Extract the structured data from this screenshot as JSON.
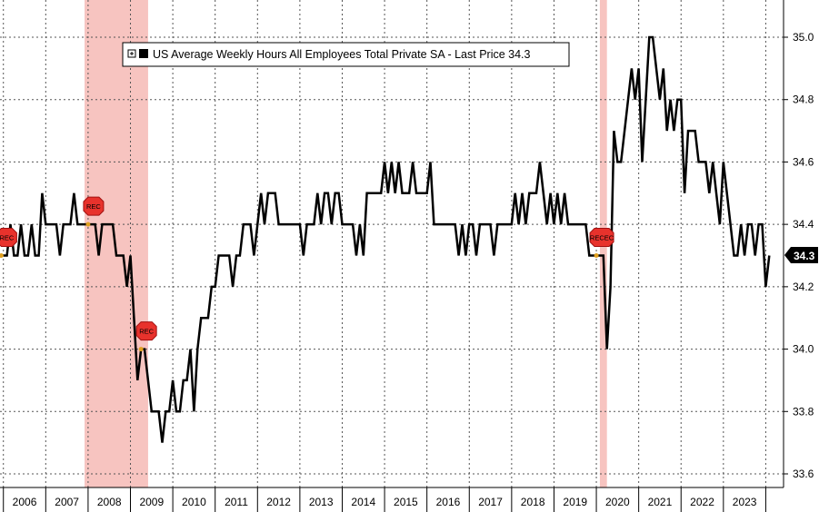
{
  "chart_data": {
    "type": "line",
    "title": "",
    "xlabel": "",
    "ylabel": "",
    "legend": {
      "label": "US Average Weekly Hours All Employees Total Private SA - Last Price",
      "last_value": "34.3",
      "position": "top-center"
    },
    "x_start": 2005.92,
    "x_end": 2024.42,
    "x_ticks": [
      "2006",
      "2007",
      "2008",
      "2009",
      "2010",
      "2011",
      "2012",
      "2013",
      "2014",
      "2015",
      "2016",
      "2017",
      "2018",
      "2019",
      "2020",
      "2021",
      "2022",
      "2023"
    ],
    "ylim": [
      33.6,
      35.1
    ],
    "y_ticks": [
      "33.6",
      "33.8",
      "34.0",
      "34.2",
      "34.4",
      "34.6",
      "34.8",
      "35.0"
    ],
    "grid": true,
    "last_price_label": "34.3",
    "recessions": [
      {
        "start": 2007.917,
        "end": 2009.417
      },
      {
        "start": 2020.083,
        "end": 2020.25
      }
    ],
    "rec_markers": [
      {
        "x": 2005.95,
        "label": "REC"
      },
      {
        "x": 2008.0,
        "label": "REC"
      },
      {
        "x": 2009.25,
        "label": "REC"
      },
      {
        "x": 2020.0,
        "label": "RECEC"
      }
    ],
    "series": [
      {
        "color": "#000000",
        "x_start": 2006.0,
        "step": 0.08333,
        "values": [
          34.3,
          34.3,
          34.4,
          34.3,
          34.3,
          34.4,
          34.3,
          34.3,
          34.4,
          34.3,
          34.3,
          34.5,
          34.4,
          34.4,
          34.4,
          34.4,
          34.3,
          34.4,
          34.4,
          34.4,
          34.5,
          34.4,
          34.4,
          34.4,
          34.4,
          34.4,
          34.4,
          34.3,
          34.4,
          34.4,
          34.4,
          34.4,
          34.3,
          34.3,
          34.3,
          34.2,
          34.3,
          34.1,
          33.9,
          34.0,
          34.0,
          33.9,
          33.8,
          33.8,
          33.8,
          33.7,
          33.8,
          33.8,
          33.9,
          33.8,
          33.8,
          33.9,
          33.9,
          34.0,
          33.8,
          34.0,
          34.1,
          34.1,
          34.1,
          34.2,
          34.2,
          34.3,
          34.3,
          34.3,
          34.3,
          34.2,
          34.3,
          34.3,
          34.4,
          34.4,
          34.4,
          34.3,
          34.4,
          34.5,
          34.4,
          34.5,
          34.5,
          34.5,
          34.4,
          34.4,
          34.4,
          34.4,
          34.4,
          34.4,
          34.4,
          34.3,
          34.4,
          34.4,
          34.4,
          34.5,
          34.4,
          34.5,
          34.5,
          34.4,
          34.5,
          34.5,
          34.4,
          34.4,
          34.4,
          34.4,
          34.3,
          34.4,
          34.3,
          34.5,
          34.5,
          34.5,
          34.5,
          34.5,
          34.6,
          34.5,
          34.6,
          34.5,
          34.6,
          34.5,
          34.5,
          34.5,
          34.6,
          34.5,
          34.5,
          34.5,
          34.5,
          34.6,
          34.4,
          34.4,
          34.4,
          34.4,
          34.4,
          34.4,
          34.4,
          34.3,
          34.4,
          34.3,
          34.4,
          34.4,
          34.3,
          34.4,
          34.4,
          34.4,
          34.4,
          34.3,
          34.4,
          34.4,
          34.4,
          34.4,
          34.4,
          34.5,
          34.4,
          34.5,
          34.4,
          34.5,
          34.5,
          34.5,
          34.6,
          34.5,
          34.4,
          34.5,
          34.4,
          34.5,
          34.4,
          34.5,
          34.4,
          34.4,
          34.4,
          34.4,
          34.4,
          34.4,
          34.3,
          34.3,
          34.3,
          34.3,
          34.3,
          34.0,
          34.2,
          34.7,
          34.6,
          34.6,
          34.7,
          34.8,
          34.9,
          34.8,
          34.9,
          34.6,
          34.8,
          35.0,
          35.0,
          34.9,
          34.8,
          34.9,
          34.7,
          34.8,
          34.7,
          34.8,
          34.8,
          34.5,
          34.7,
          34.7,
          34.7,
          34.6,
          34.6,
          34.6,
          34.5,
          34.6,
          34.5,
          34.4,
          34.6,
          34.5,
          34.4,
          34.3,
          34.3,
          34.4,
          34.3,
          34.4,
          34.4,
          34.3,
          34.4,
          34.4,
          34.2,
          34.3
        ]
      }
    ]
  }
}
